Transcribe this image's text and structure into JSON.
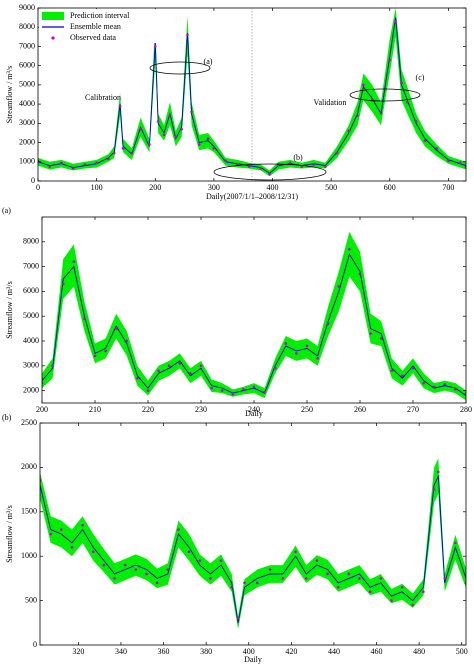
{
  "chart_data": [
    {
      "type": "line",
      "xlabel": "Daily(2007/1/1–2008/12/31)",
      "ylabel": "Streamflow / m³/s",
      "xlim": [
        0,
        730
      ],
      "xticks": [
        0,
        100,
        200,
        300,
        400,
        500,
        600,
        700
      ],
      "ylim": [
        0,
        9000
      ],
      "yticks": [
        0,
        1000,
        2000,
        3000,
        4000,
        5000,
        6000,
        7000,
        8000,
        9000
      ],
      "divider": 365,
      "legend": "upper left",
      "annotations": [
        "(a)",
        "(b)",
        "(c)",
        "Calibration",
        "Validation"
      ],
      "x": [
        0,
        20,
        40,
        60,
        80,
        100,
        120,
        130,
        140,
        145,
        160,
        175,
        190,
        200,
        205,
        215,
        225,
        235,
        245,
        255,
        262,
        275,
        290,
        300,
        320,
        340,
        360,
        380,
        395,
        410,
        430,
        450,
        470,
        490,
        510,
        530,
        545,
        555,
        570,
        585,
        600,
        610,
        620,
        630,
        645,
        660,
        680,
        700,
        720,
        730
      ],
      "series": [
        {
          "name": "Prediction interval",
          "color": "#00ee00",
          "lower": [
            800,
            600,
            700,
            550,
            650,
            700,
            1000,
            1200,
            3400,
            1500,
            1100,
            2300,
            1500,
            6200,
            2500,
            2100,
            2900,
            1800,
            2300,
            6600,
            2900,
            1600,
            1700,
            1500,
            800,
            700,
            650,
            550,
            250,
            600,
            700,
            650,
            700,
            650,
            1200,
            2100,
            2900,
            4200,
            3600,
            2900,
            5600,
            7500,
            4200,
            3500,
            2500,
            1800,
            1300,
            900,
            700,
            600
          ],
          "upper": [
            1200,
            1000,
            1100,
            900,
            1000,
            1100,
            1400,
            1800,
            4600,
            2200,
            1700,
            3300,
            2200,
            8200,
            3500,
            2900,
            4100,
            2600,
            3300,
            8600,
            4100,
            2400,
            2500,
            2100,
            1200,
            1100,
            950,
            850,
            550,
            1000,
            1100,
            950,
            1100,
            950,
            1800,
            2900,
            4100,
            5600,
            5000,
            4100,
            7400,
            9000,
            5800,
            4900,
            3500,
            2600,
            1900,
            1300,
            1100,
            1000
          ]
        },
        {
          "name": "Ensemble mean",
          "color": "#0000cc",
          "values": [
            1000,
            800,
            900,
            700,
            800,
            900,
            1200,
            1500,
            4000,
            1800,
            1400,
            2800,
            1800,
            7200,
            3000,
            2500,
            3500,
            2200,
            2800,
            7700,
            3500,
            2000,
            2100,
            1800,
            1000,
            900,
            800,
            700,
            400,
            800,
            900,
            800,
            900,
            800,
            1500,
            2500,
            3500,
            4900,
            4300,
            3500,
            6500,
            8500,
            5000,
            4200,
            3000,
            2200,
            1600,
            1100,
            900,
            800
          ]
        },
        {
          "name": "Observed data",
          "color": "#cc00cc",
          "marker": "dot",
          "values": [
            1050,
            750,
            950,
            650,
            850,
            950,
            1150,
            1450,
            3900,
            1700,
            1450,
            2700,
            1900,
            7000,
            3100,
            2400,
            3400,
            2300,
            2700,
            7600,
            3600,
            1900,
            2200,
            1700,
            1050,
            850,
            750,
            650,
            350,
            850,
            950,
            750,
            850,
            750,
            1450,
            2600,
            3400,
            5000,
            4200,
            3600,
            6300,
            8300,
            5100,
            4100,
            3100,
            2100,
            1700,
            1050,
            950,
            750
          ]
        }
      ]
    },
    {
      "type": "line",
      "panel_label": "(a)",
      "xlabel": "Daily",
      "ylabel": "Streamflow / m³/s",
      "xlim": [
        200,
        280
      ],
      "xticks": [
        200,
        210,
        220,
        230,
        240,
        250,
        260,
        270,
        280
      ],
      "ylim": [
        1500,
        9000
      ],
      "yticks": [
        2000,
        3000,
        4000,
        5000,
        6000,
        7000,
        8000
      ],
      "x": [
        200,
        202,
        204,
        206,
        208,
        210,
        212,
        214,
        216,
        218,
        220,
        222,
        224,
        226,
        228,
        230,
        232,
        234,
        236,
        238,
        240,
        242,
        244,
        246,
        248,
        250,
        252,
        254,
        256,
        258,
        260,
        262,
        264,
        266,
        268,
        270,
        272,
        274,
        276,
        278,
        280
      ],
      "series": [
        {
          "color": "#00ee00",
          "lower": [
            2100,
            2500,
            5700,
            6200,
            4400,
            3100,
            3300,
            4100,
            3400,
            2200,
            1800,
            2400,
            2600,
            2900,
            2300,
            2600,
            1950,
            1900,
            1750,
            1850,
            1900,
            1700,
            2700,
            3400,
            3200,
            3300,
            3000,
            4200,
            5200,
            6600,
            6000,
            3900,
            3800,
            2500,
            2200,
            2700,
            2100,
            1900,
            2000,
            1900,
            1600
          ],
          "upper": [
            2700,
            3300,
            7300,
            7900,
            5600,
            3900,
            4100,
            5100,
            4400,
            3000,
            2400,
            3000,
            3200,
            3500,
            2900,
            3200,
            2450,
            2300,
            2050,
            2150,
            2300,
            2100,
            3300,
            4200,
            4000,
            4100,
            3800,
            5400,
            6800,
            8400,
            7600,
            5100,
            4800,
            3300,
            2800,
            3300,
            2700,
            2300,
            2400,
            2300,
            2000
          ]
        },
        {
          "color": "#0000cc",
          "values": [
            2400,
            2900,
            6500,
            7000,
            5000,
            3500,
            3700,
            4600,
            3900,
            2600,
            2100,
            2700,
            2900,
            3200,
            2600,
            2900,
            2200,
            2100,
            1900,
            2000,
            2100,
            1900,
            3000,
            3800,
            3600,
            3700,
            3400,
            4800,
            6000,
            7500,
            6800,
            4500,
            4300,
            2900,
            2500,
            3000,
            2400,
            2100,
            2200,
            2100,
            1800
          ]
        },
        {
          "color": "#cc00cc",
          "marker": "dot",
          "values": [
            2300,
            3000,
            6300,
            7200,
            4900,
            3400,
            3600,
            4500,
            4000,
            2500,
            2000,
            2800,
            3000,
            3100,
            2700,
            3000,
            2100,
            2000,
            1850,
            2050,
            2150,
            1950,
            2900,
            3900,
            3500,
            3800,
            3300,
            4700,
            6200,
            7700,
            6700,
            4300,
            4100,
            2800,
            2600,
            2900,
            2300,
            2150,
            2250,
            2050,
            1850
          ]
        }
      ]
    },
    {
      "type": "line",
      "panel_label": "(b)",
      "xlabel": "Daily",
      "ylabel": "Streamflow / m³/s",
      "xlim": [
        302,
        502
      ],
      "xticks": [
        320,
        340,
        360,
        380,
        400,
        420,
        440,
        460,
        480,
        500
      ],
      "ylim": [
        0,
        2500
      ],
      "yticks": [
        0,
        500,
        1000,
        1500,
        2000,
        2500
      ],
      "x": [
        302,
        307,
        312,
        317,
        322,
        327,
        332,
        337,
        342,
        347,
        352,
        357,
        362,
        367,
        372,
        377,
        382,
        387,
        392,
        395,
        398,
        404,
        410,
        416,
        422,
        427,
        432,
        437,
        442,
        447,
        452,
        457,
        462,
        467,
        472,
        477,
        482,
        487,
        489,
        492,
        497,
        502
      ],
      "series": [
        {
          "color": "#00ee00",
          "lower": [
            1650,
            1150,
            1100,
            1000,
            1150,
            950,
            820,
            680,
            730,
            780,
            730,
            640,
            680,
            1100,
            950,
            780,
            680,
            780,
            600,
            180,
            560,
            650,
            700,
            700,
            880,
            700,
            790,
            740,
            600,
            650,
            700,
            560,
            600,
            470,
            510,
            420,
            560,
            1600,
            1700,
            600,
            960,
            640
          ],
          "upper": [
            1950,
            1450,
            1400,
            1300,
            1450,
            1250,
            1080,
            920,
            970,
            1020,
            970,
            860,
            920,
            1400,
            1250,
            1020,
            920,
            1020,
            800,
            320,
            740,
            850,
            900,
            900,
            1120,
            900,
            1010,
            960,
            800,
            850,
            900,
            740,
            800,
            630,
            690,
            580,
            740,
            2000,
            2100,
            800,
            1240,
            860
          ]
        },
        {
          "color": "#0000cc",
          "values": [
            1800,
            1300,
            1250,
            1150,
            1300,
            1100,
            950,
            800,
            850,
            900,
            850,
            750,
            800,
            1250,
            1100,
            900,
            800,
            900,
            700,
            250,
            650,
            750,
            800,
            800,
            1000,
            800,
            900,
            850,
            700,
            750,
            800,
            650,
            700,
            550,
            600,
            500,
            650,
            1800,
            1900,
            700,
            1100,
            750
          ]
        },
        {
          "color": "#cc00cc",
          "marker": "dot",
          "values": [
            1850,
            1250,
            1300,
            1100,
            1350,
            1050,
            900,
            750,
            900,
            850,
            800,
            700,
            850,
            1300,
            1050,
            950,
            750,
            950,
            650,
            300,
            700,
            700,
            850,
            750,
            1050,
            750,
            950,
            800,
            650,
            800,
            750,
            600,
            750,
            500,
            650,
            450,
            600,
            1750,
            1950,
            750,
            1150,
            700
          ]
        }
      ]
    }
  ]
}
